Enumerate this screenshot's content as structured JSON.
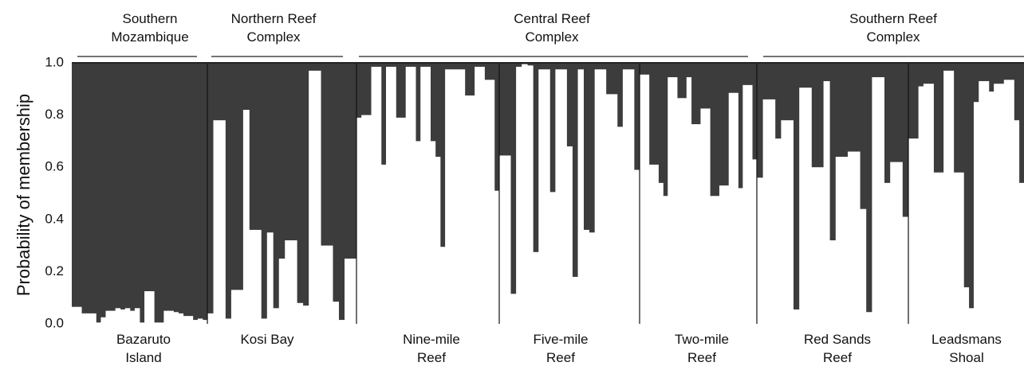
{
  "chart_data": {
    "type": "bar",
    "stacked": true,
    "ylabel": "Probability of membership",
    "ylim": [
      0,
      1
    ],
    "yticks": [
      "0.0",
      "0.2",
      "0.4",
      "0.6",
      "0.8",
      "1.0"
    ],
    "grid": false,
    "legend": "none",
    "colors": {
      "cluster_dark": "#3c3c3c",
      "cluster_light": "#ffffff",
      "frame": "#111111"
    },
    "regions": [
      {
        "label_lines": [
          "Southern",
          "Mozambique"
        ]
      },
      {
        "label_lines": [
          "Northern Reef",
          "Complex"
        ]
      },
      {
        "label_lines": [
          "Central Reef",
          "Complex"
        ]
      },
      {
        "label_lines": [
          "Southern Reef",
          "Complex"
        ]
      }
    ],
    "populations": [
      {
        "label_lines": [
          "Bazaruto",
          "Island"
        ],
        "light_values": [
          0.065,
          0.065,
          0.04,
          0.04,
          0.04,
          0.005,
          0.025,
          0.05,
          0.05,
          0.06,
          0.055,
          0.06,
          0.05,
          0.06,
          0.005,
          0.125,
          0.125,
          0.005,
          0.005,
          0.05,
          0.05,
          0.045,
          0.04,
          0.03,
          0.03,
          0.015,
          0.02,
          0.015
        ]
      },
      {
        "label_lines": [
          "Kosi Bay"
        ],
        "light_values": [
          0.04,
          0.78,
          0.78,
          0.02,
          0.13,
          0.13,
          0.82,
          0.36,
          0.36,
          0.02,
          0.35,
          0.06,
          0.25,
          0.32,
          0.32,
          0.08,
          0.07,
          0.97,
          0.97,
          0.3,
          0.3,
          0.085,
          0.015,
          0.25,
          0.25
        ]
      },
      {
        "label_lines": [
          "Nine-mile",
          "Reef"
        ],
        "light_values": [
          0.79,
          0.8,
          0.8,
          0.985,
          0.985,
          0.61,
          0.985,
          0.985,
          0.79,
          0.79,
          0.985,
          0.985,
          0.7,
          0.985,
          0.985,
          0.7,
          0.64,
          0.295,
          0.975,
          0.975,
          0.975,
          0.975,
          0.875,
          0.875,
          0.985,
          0.985,
          0.935,
          0.935,
          0.51
        ]
      },
      {
        "label_lines": [
          "Five-mile",
          "Reef"
        ],
        "light_values": [
          0.645,
          0.645,
          0.115,
          0.985,
          0.995,
          0.99,
          0.275,
          0.975,
          0.975,
          0.505,
          0.975,
          0.975,
          0.68,
          0.18,
          0.975,
          0.36,
          0.35,
          0.975,
          0.975,
          0.88,
          0.88,
          0.755,
          0.975,
          0.975,
          0.59
        ]
      },
      {
        "label_lines": [
          "Two-mile",
          "Reef"
        ],
        "light_values": [
          0.955,
          0.955,
          0.61,
          0.61,
          0.54,
          0.49,
          0.945,
          0.945,
          0.865,
          0.865,
          0.945,
          0.765,
          0.765,
          0.825,
          0.825,
          0.49,
          0.49,
          0.53,
          0.53,
          0.885,
          0.885,
          0.52,
          0.915,
          0.915,
          0.63
        ]
      },
      {
        "label_lines": [
          "Red Sands",
          "Reef"
        ],
        "light_values": [
          0.56,
          0.86,
          0.86,
          0.71,
          0.78,
          0.78,
          0.055,
          0.905,
          0.905,
          0.6,
          0.6,
          0.93,
          0.32,
          0.64,
          0.64,
          0.66,
          0.66,
          0.44,
          0.045,
          0.945,
          0.945,
          0.54,
          0.62,
          0.62,
          0.41
        ]
      },
      {
        "label_lines": [
          "Leadsmans",
          "Shoal"
        ],
        "light_values": [
          0.71,
          0.71,
          0.91,
          0.92,
          0.92,
          0.58,
          0.58,
          0.97,
          0.97,
          0.58,
          0.58,
          0.14,
          0.06,
          0.85,
          0.93,
          0.93,
          0.89,
          0.92,
          0.92,
          0.935,
          0.935,
          0.78,
          0.54
        ]
      }
    ]
  }
}
